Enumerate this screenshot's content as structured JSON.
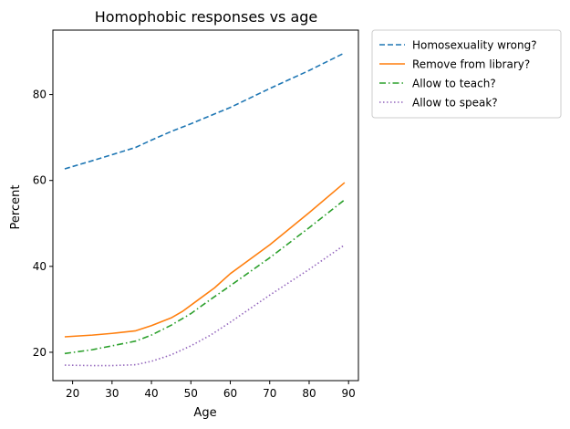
{
  "chart_data": {
    "type": "line",
    "title": "Homophobic responses vs age",
    "xlabel": "Age",
    "ylabel": "Percent",
    "xlim": [
      15,
      92.5
    ],
    "ylim": [
      13.4,
      95.0
    ],
    "xticks": [
      20,
      30,
      40,
      50,
      60,
      70,
      80,
      90
    ],
    "yticks": [
      20,
      40,
      60,
      80
    ],
    "legend_position": "outside-top-right",
    "grid": false,
    "series": [
      {
        "name": "Homosexuality wrong?",
        "color": "#1f77b4",
        "dash": "dashed",
        "x": [
          18,
          25,
          30,
          36,
          40,
          45,
          50,
          55,
          60,
          70,
          80,
          89
        ],
        "y": [
          62.7,
          64.6,
          66.0,
          67.7,
          69.4,
          71.4,
          73.2,
          75.1,
          77.0,
          81.4,
          85.6,
          89.7
        ]
      },
      {
        "name": "Remove from library?",
        "color": "#ff7f0e",
        "dash": "solid",
        "x": [
          18,
          25,
          30,
          36,
          40,
          45,
          48,
          52,
          56,
          60,
          70,
          80,
          89
        ],
        "y": [
          23.6,
          24.0,
          24.4,
          25.0,
          26.2,
          28.0,
          29.6,
          32.3,
          35.0,
          38.3,
          45.0,
          52.5,
          59.5
        ]
      },
      {
        "name": "Allow to teach?",
        "color": "#2ca02c",
        "dash": "dashdot",
        "x": [
          18,
          25,
          30,
          36,
          40,
          45,
          50,
          55,
          60,
          70,
          80,
          89
        ],
        "y": [
          19.7,
          20.6,
          21.5,
          22.6,
          24.0,
          26.3,
          29.0,
          32.3,
          35.5,
          42.0,
          49.0,
          55.5
        ]
      },
      {
        "name": "Allow to speak?",
        "color": "#9467bd",
        "dash": "dotted",
        "x": [
          18,
          25,
          30,
          36,
          40,
          45,
          50,
          55,
          60,
          70,
          80,
          89
        ],
        "y": [
          17.0,
          16.9,
          16.9,
          17.1,
          17.9,
          19.4,
          21.5,
          24.0,
          27.0,
          33.3,
          39.3,
          45.0
        ]
      }
    ]
  }
}
